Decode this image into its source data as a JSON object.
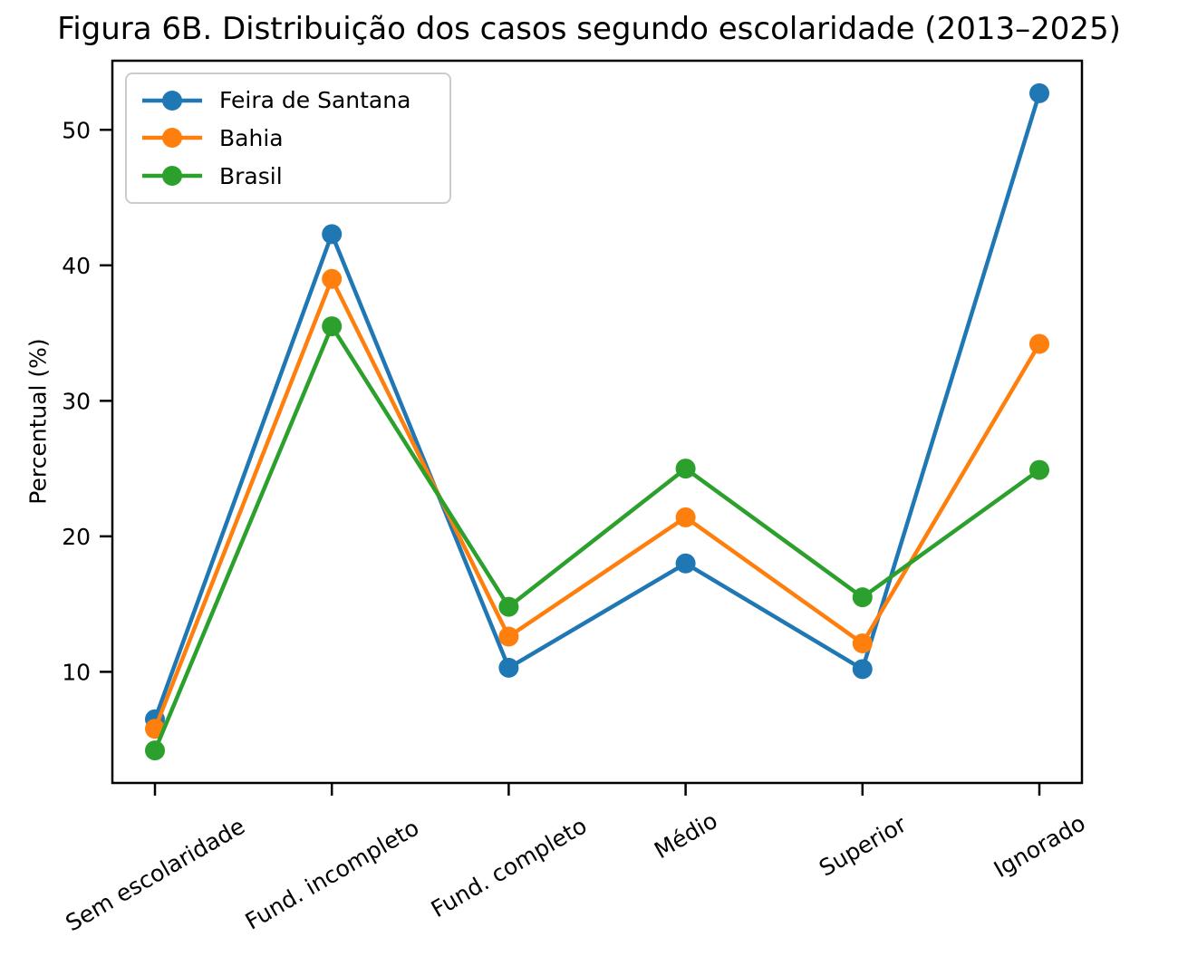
{
  "chart_data": {
    "type": "line",
    "title": "Figura 6B. Distribuição dos casos segundo escolaridade (2013–2025)",
    "ylabel": "Percentual (%)",
    "xlabel": "",
    "categories": [
      "Sem escolaridade",
      "Fund. incompleto",
      "Fund. completo",
      "Médio",
      "Superior",
      "Ignorado"
    ],
    "series": [
      {
        "name": "Feira de Santana",
        "color": "#1f77b4",
        "values": [
          6.5,
          42.3,
          10.3,
          18.0,
          10.2,
          52.7
        ]
      },
      {
        "name": "Bahia",
        "color": "#ff7f0e",
        "values": [
          5.8,
          39.0,
          12.6,
          21.4,
          12.1,
          34.2
        ]
      },
      {
        "name": "Brasil",
        "color": "#2ca02c",
        "values": [
          4.2,
          35.5,
          14.8,
          25.0,
          15.5,
          24.9
        ]
      }
    ],
    "yticks": [
      10,
      20,
      30,
      40,
      50
    ],
    "ylim": [
      1.8,
      55.1
    ],
    "xtick_rotation_deg": 30,
    "legend_position": "upper left",
    "grid": false,
    "marker": "o",
    "axis_color": "#000000"
  }
}
